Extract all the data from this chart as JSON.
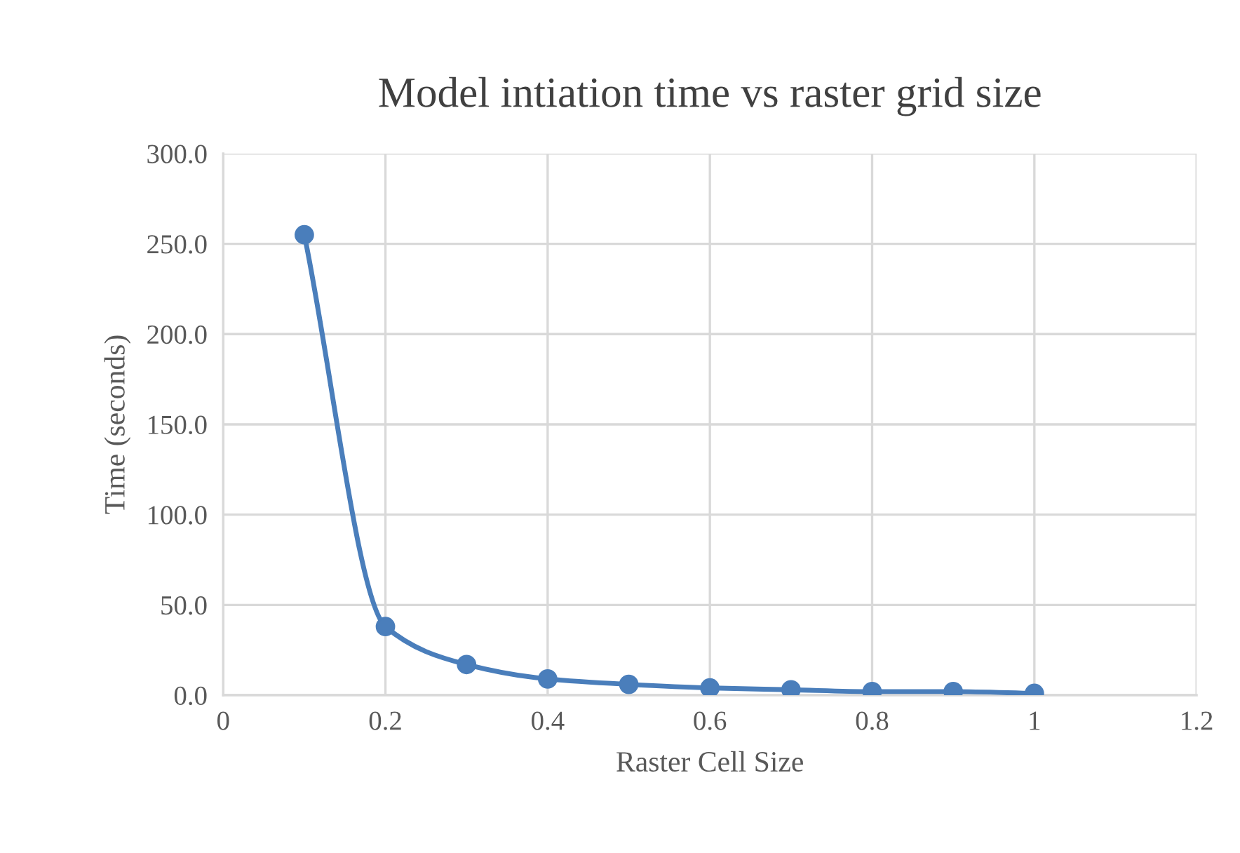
{
  "chart_data": {
    "type": "line",
    "title": "Model intiation time vs raster grid size",
    "xlabel": "Raster Cell Size",
    "ylabel": "Time (seconds)",
    "x": [
      0.1,
      0.2,
      0.3,
      0.4,
      0.5,
      0.6,
      0.7,
      0.8,
      0.9,
      1.0
    ],
    "series": [
      {
        "color": "#4a7ebb",
        "values": [
          255,
          38,
          17,
          9,
          6,
          4,
          3,
          2,
          2,
          1
        ]
      }
    ],
    "marker": "circle",
    "line_style": "solid",
    "grid": true,
    "xlim": [
      0,
      1.2
    ],
    "xticks": [
      0,
      0.2,
      0.4,
      0.6,
      0.8,
      1,
      1.2
    ],
    "ylim": [
      0,
      300
    ],
    "yticks": [
      {
        "value": 0,
        "label": "0.0"
      },
      {
        "value": 50,
        "label": "50.0"
      },
      {
        "value": 100,
        "label": "100.0"
      },
      {
        "value": 150,
        "label": "150.0"
      },
      {
        "value": 200,
        "label": "200.0"
      },
      {
        "value": 250,
        "label": "250.0"
      },
      {
        "value": 300,
        "label": "300.0"
      }
    ]
  }
}
